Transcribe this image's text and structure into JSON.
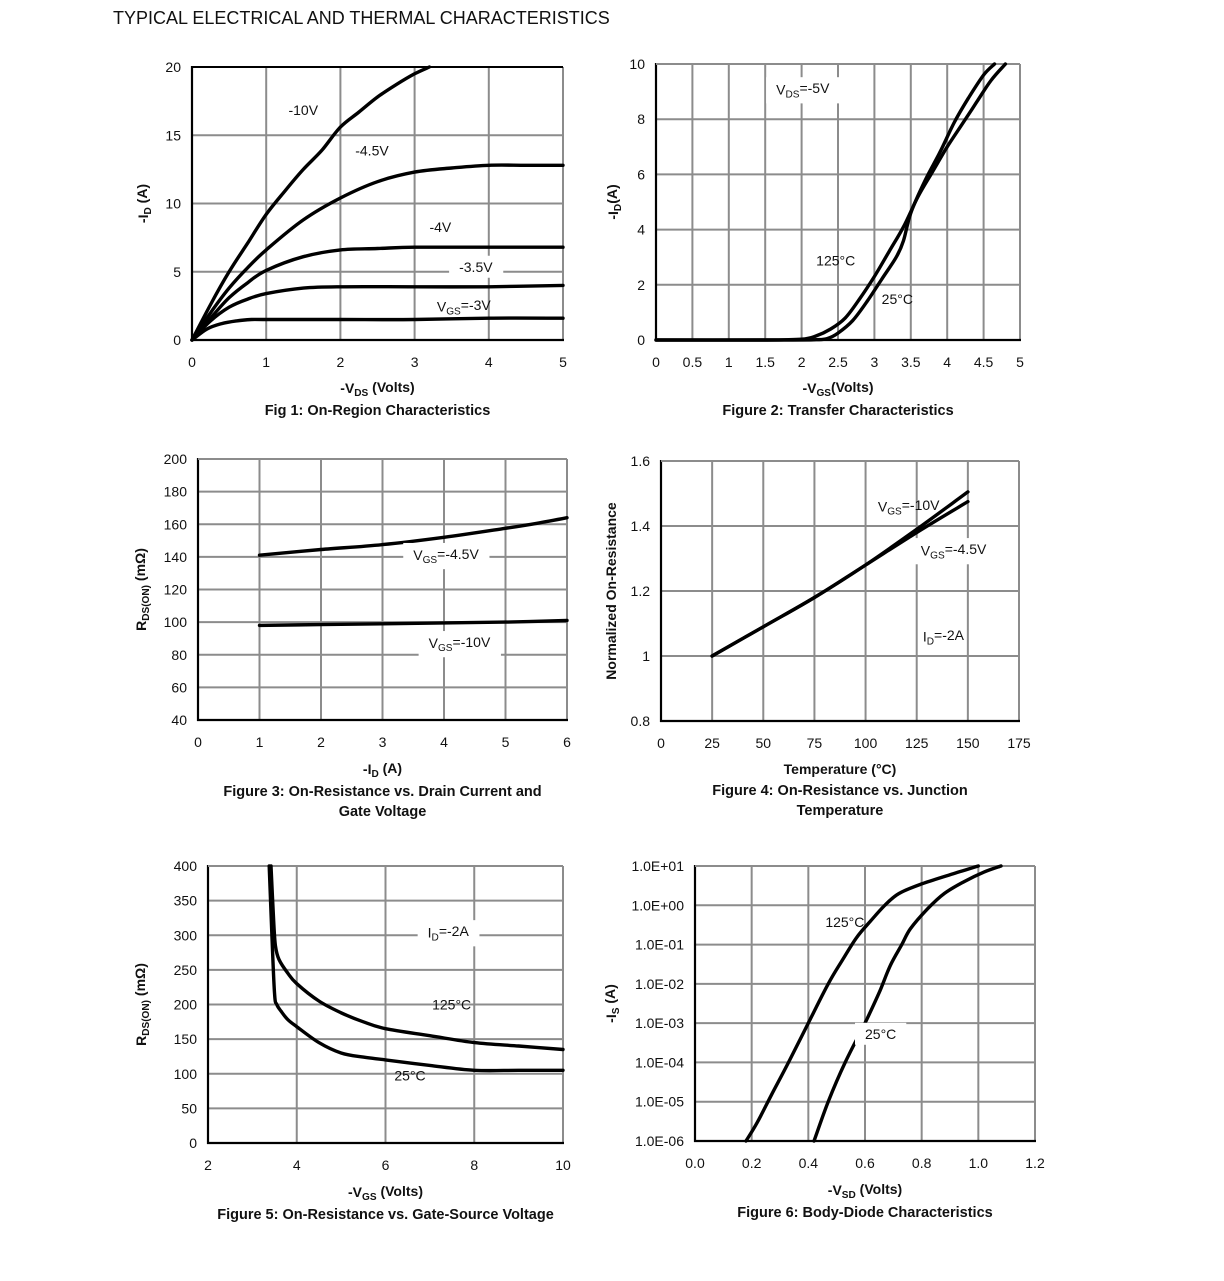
{
  "page": {
    "title": "TYPICAL ELECTRICAL AND THERMAL CHARACTERISTICS"
  },
  "chart_data": [
    {
      "id": "fig1",
      "type": "line",
      "title": "Fig 1: On-Region Characteristics",
      "title_lines": [
        "Fig 1: On-Region Characteristics"
      ],
      "xlabel": {
        "main": "-V",
        "sub": "DS",
        "rest": " (Volts)"
      },
      "ylabel": {
        "main": "-I",
        "sub": "D",
        "rest": " (A)"
      },
      "xlim": [
        0,
        5
      ],
      "ylim": [
        0,
        20
      ],
      "xticks": [
        0,
        1,
        2,
        3,
        4,
        5
      ],
      "xtick_labels": [
        "0",
        "1",
        "2",
        "3",
        "4",
        "5"
      ],
      "yticks": [
        0,
        5,
        10,
        15,
        20
      ],
      "ytick_labels": [
        "0",
        "5",
        "10",
        "15",
        "20"
      ],
      "yscale": "linear",
      "grid": true,
      "series": [
        {
          "name": "-10V",
          "x": [
            0,
            0.25,
            0.5,
            0.75,
            1.0,
            1.25,
            1.5,
            1.75,
            2.0,
            2.25,
            2.5,
            2.75,
            3.0,
            3.2
          ],
          "y": [
            0,
            2.6,
            5.0,
            7.1,
            9.2,
            10.9,
            12.5,
            13.9,
            15.6,
            16.7,
            17.8,
            18.7,
            19.5,
            20.0
          ]
        },
        {
          "name": "-4.5V",
          "x": [
            0,
            0.25,
            0.5,
            0.75,
            1.0,
            1.5,
            2.0,
            2.5,
            3.0,
            3.5,
            4.0,
            4.5,
            5.0
          ],
          "y": [
            0,
            2.0,
            3.8,
            5.3,
            6.6,
            8.8,
            10.4,
            11.6,
            12.3,
            12.6,
            12.8,
            12.8,
            12.8
          ]
        },
        {
          "name": "-4V",
          "x": [
            0,
            0.25,
            0.5,
            0.75,
            1.0,
            1.5,
            2.0,
            2.5,
            3.0,
            4.0,
            5.0
          ],
          "y": [
            0,
            1.6,
            3.1,
            4.2,
            5.1,
            6.1,
            6.6,
            6.7,
            6.8,
            6.8,
            6.8
          ]
        },
        {
          "name": "-3.5V",
          "x": [
            0,
            0.25,
            0.5,
            0.75,
            1.0,
            1.5,
            2.0,
            3.0,
            4.0,
            5.0
          ],
          "y": [
            0,
            1.4,
            2.4,
            3.0,
            3.4,
            3.8,
            3.9,
            3.9,
            3.9,
            4.0
          ]
        },
        {
          "name": "VGS=-3V",
          "x": [
            0,
            0.2,
            0.4,
            0.6,
            0.8,
            1.0,
            2.0,
            3.0,
            4.0,
            5.0
          ],
          "y": [
            0,
            0.8,
            1.2,
            1.4,
            1.5,
            1.5,
            1.5,
            1.5,
            1.6,
            1.6
          ]
        }
      ],
      "annotations": [
        {
          "text": "-10V",
          "x": 1.3,
          "y": 16.5,
          "bg": false
        },
        {
          "text": "-4.5V",
          "x": 2.2,
          "y": 13.5,
          "bg": false
        },
        {
          "text": "-4V",
          "x": 3.2,
          "y": 7.9,
          "bg": false
        },
        {
          "text": "-3.5V",
          "x": 3.6,
          "y": 5.0,
          "bg": true
        },
        {
          "main": "V",
          "sub": "GS",
          "rest": "=-3V",
          "x": 3.3,
          "y": 2.1,
          "bg": false
        }
      ]
    },
    {
      "id": "fig2",
      "type": "line",
      "title": "Figure 2: Transfer Characteristics",
      "title_lines": [
        "Figure 2: Transfer Characteristics"
      ],
      "xlabel": {
        "main": "-V",
        "sub": "GS",
        "rest": "(Volts)"
      },
      "ylabel": {
        "main": "-I",
        "sub": "D",
        "rest": "(A)"
      },
      "xlim": [
        0,
        5
      ],
      "ylim": [
        0,
        10
      ],
      "xticks": [
        0,
        0.5,
        1,
        1.5,
        2,
        2.5,
        3,
        3.5,
        4,
        4.5,
        5
      ],
      "xtick_labels": [
        "0",
        "0.5",
        "1",
        "1.5",
        "2",
        "2.5",
        "3",
        "3.5",
        "4",
        "4.5",
        "5"
      ],
      "yticks": [
        0,
        2,
        4,
        6,
        8,
        10
      ],
      "ytick_labels": [
        "0",
        "2",
        "4",
        "6",
        "8",
        "10"
      ],
      "yscale": "linear",
      "grid": true,
      "series": [
        {
          "name": "125°C",
          "x": [
            0,
            1.5,
            2.0,
            2.2,
            2.4,
            2.6,
            2.8,
            3.0,
            3.2,
            3.4,
            3.6,
            3.8,
            4.0,
            4.2,
            4.4,
            4.6,
            4.8
          ],
          "y": [
            0,
            0,
            0.03,
            0.15,
            0.4,
            0.8,
            1.5,
            2.3,
            3.2,
            4.1,
            5.2,
            6.1,
            7.0,
            7.8,
            8.6,
            9.4,
            10.0
          ]
        },
        {
          "name": "25°C",
          "x": [
            0,
            1.8,
            2.2,
            2.35,
            2.5,
            2.7,
            2.9,
            3.1,
            3.3,
            3.4,
            3.5,
            3.7,
            3.9,
            4.1,
            4.3,
            4.5,
            4.65
          ],
          "y": [
            0,
            0,
            0.01,
            0.05,
            0.25,
            0.7,
            1.4,
            2.2,
            3.0,
            3.6,
            4.6,
            5.8,
            6.8,
            7.9,
            8.8,
            9.6,
            10.0
          ]
        }
      ],
      "annotations": [
        {
          "main": "V",
          "sub": "DS",
          "rest": "=-5V",
          "x": 1.65,
          "y": 8.9,
          "bg": true
        },
        {
          "text": "125°C",
          "x": 2.2,
          "y": 2.7,
          "bg": false
        },
        {
          "text": "25°C",
          "x": 3.1,
          "y": 1.3,
          "bg": false
        }
      ]
    },
    {
      "id": "fig3",
      "type": "line",
      "title": "Figure 3: On-Resistance vs. Drain Current and Gate Voltage",
      "title_lines": [
        "Figure 3: On-Resistance vs. Drain Current and",
        "Gate Voltage"
      ],
      "xlabel": {
        "main": "-I",
        "sub": "D",
        "rest": " (A)"
      },
      "ylabel": {
        "main": "R",
        "sub": "DS(ON)",
        "rest": " (mΩ)"
      },
      "xlim": [
        0,
        6
      ],
      "ylim": [
        40,
        200
      ],
      "xticks": [
        0,
        1,
        2,
        3,
        4,
        5,
        6
      ],
      "xtick_labels": [
        "0",
        "1",
        "2",
        "3",
        "4",
        "5",
        "6"
      ],
      "yticks": [
        40,
        60,
        80,
        100,
        120,
        140,
        160,
        180,
        200
      ],
      "ytick_labels": [
        "40",
        "60",
        "80",
        "100",
        "120",
        "140",
        "160",
        "180",
        "200"
      ],
      "yscale": "linear",
      "grid": true,
      "series": [
        {
          "name": "VGS=-4.5V",
          "x": [
            1,
            2,
            3,
            4,
            5,
            5.5,
            6
          ],
          "y": [
            141,
            144.5,
            147.5,
            152,
            157.5,
            160.5,
            164
          ]
        },
        {
          "name": "VGS=-10V",
          "x": [
            1,
            2,
            3,
            4,
            5,
            6
          ],
          "y": [
            98,
            98.5,
            99,
            99.5,
            100,
            101
          ]
        }
      ],
      "annotations": [
        {
          "main": "V",
          "sub": "GS",
          "rest": "=-4.5V",
          "x": 3.5,
          "y": 138,
          "bg": true
        },
        {
          "main": "V",
          "sub": "GS",
          "rest": "=-10V",
          "x": 3.75,
          "y": 84,
          "bg": true
        }
      ]
    },
    {
      "id": "fig4",
      "type": "line",
      "title": "Figure 4: On-Resistance vs. Junction Temperature",
      "title_lines": [
        "Figure 4: On-Resistance vs. Junction",
        "Temperature"
      ],
      "xlabel": {
        "main": "Temperature (°C)",
        "sub": "",
        "rest": ""
      },
      "ylabel": {
        "main": "Normalized On-Resistance",
        "sub": "",
        "rest": ""
      },
      "xlim": [
        0,
        175
      ],
      "ylim": [
        0.8,
        1.6
      ],
      "xticks": [
        0,
        25,
        50,
        75,
        100,
        125,
        150,
        175
      ],
      "xtick_labels": [
        "0",
        "25",
        "50",
        "75",
        "100",
        "125",
        "150",
        "175"
      ],
      "yticks": [
        0.8,
        1.0,
        1.2,
        1.4,
        1.6
      ],
      "ytick_labels": [
        "0.8",
        "1",
        "1.2",
        "1.4",
        "1.6"
      ],
      "yscale": "linear",
      "grid": true,
      "series": [
        {
          "name": "VGS=-10V",
          "x": [
            25,
            50,
            75,
            100,
            125,
            150
          ],
          "y": [
            1.0,
            1.09,
            1.18,
            1.28,
            1.39,
            1.505
          ]
        },
        {
          "name": "VGS=-4.5V",
          "x": [
            25,
            50,
            75,
            100,
            125,
            150
          ],
          "y": [
            1.0,
            1.09,
            1.18,
            1.28,
            1.38,
            1.475
          ]
        }
      ],
      "annotations": [
        {
          "main": "V",
          "sub": "GS",
          "rest": "=-10V",
          "x": 106,
          "y": 1.445,
          "bg": false
        },
        {
          "main": "V",
          "sub": "GS",
          "rest": "=-4.5V",
          "x": 127,
          "y": 1.31,
          "bg": true
        },
        {
          "main": "I",
          "sub": "D",
          "rest": "=-2A",
          "x": 128,
          "y": 1.045,
          "bg": false
        }
      ]
    },
    {
      "id": "fig5",
      "type": "line",
      "title": "Figure 5: On-Resistance vs. Gate-Source Voltage",
      "title_lines": [
        "Figure 5: On-Resistance vs. Gate-Source Voltage"
      ],
      "xlabel": {
        "main": "-V",
        "sub": "GS",
        "rest": " (Volts)"
      },
      "ylabel": {
        "main": "R",
        "sub": "DS(ON)",
        "rest": " (mΩ)"
      },
      "xlim": [
        2,
        10
      ],
      "ylim": [
        0,
        400
      ],
      "xticks": [
        2,
        4,
        6,
        8,
        10
      ],
      "xtick_labels": [
        "2",
        "4",
        "6",
        "8",
        "10"
      ],
      "yticks": [
        0,
        50,
        100,
        150,
        200,
        250,
        300,
        350,
        400
      ],
      "ytick_labels": [
        "0",
        "50",
        "100",
        "150",
        "200",
        "250",
        "300",
        "350",
        "400"
      ],
      "yscale": "linear",
      "grid": true,
      "series": [
        {
          "name": "125°C",
          "x": [
            3.42,
            3.48,
            3.52,
            3.6,
            3.8,
            4.0,
            4.5,
            5.0,
            5.5,
            6.0,
            7.0,
            8.0,
            9.0,
            10.0
          ],
          "y": [
            400,
            320,
            285,
            265,
            245,
            230,
            205,
            188,
            175,
            165,
            155,
            145,
            140,
            135
          ]
        },
        {
          "name": "25°C",
          "x": [
            3.38,
            3.44,
            3.5,
            3.55,
            3.65,
            3.8,
            4.0,
            4.5,
            5.0,
            5.5,
            6.0,
            7.0,
            8.0,
            9.0,
            10.0
          ],
          "y": [
            400,
            300,
            215,
            200,
            190,
            178,
            168,
            145,
            130,
            124,
            120,
            112,
            105,
            105,
            105
          ]
        }
      ],
      "annotations": [
        {
          "main": "I",
          "sub": "D",
          "rest": "=-2A",
          "x": 6.95,
          "y": 297,
          "bg": true
        },
        {
          "text": "125°C",
          "x": 7.05,
          "y": 193,
          "bg": false
        },
        {
          "text": "25°C",
          "x": 6.2,
          "y": 90,
          "bg": false
        }
      ]
    },
    {
      "id": "fig6",
      "type": "line",
      "title": "Figure 6: Body-Diode Characteristics",
      "title_lines": [
        "Figure 6: Body-Diode Characteristics"
      ],
      "xlabel": {
        "main": "-V",
        "sub": "SD",
        "rest": " (Volts)"
      },
      "ylabel": {
        "main": "-I",
        "sub": "S",
        "rest": " (A)"
      },
      "xlim": [
        0,
        1.2
      ],
      "ylim": [
        1e-06,
        10
      ],
      "xticks": [
        0,
        0.2,
        0.4,
        0.6,
        0.8,
        1.0,
        1.2
      ],
      "xtick_labels": [
        "0.0",
        "0.2",
        "0.4",
        "0.6",
        "0.8",
        "1.0",
        "1.2"
      ],
      "yticks": [
        1e-06,
        1e-05,
        0.0001,
        0.001,
        0.01,
        0.1,
        1,
        10
      ],
      "ytick_labels": [
        "1.0E-06",
        "1.0E-05",
        "1.0E-04",
        "1.0E-03",
        "1.0E-02",
        "1.0E-01",
        "1.0E+00",
        "1.0E+01"
      ],
      "yscale": "log",
      "grid": true,
      "series": [
        {
          "name": "125°C",
          "x": [
            0.18,
            0.22,
            0.27,
            0.33,
            0.4,
            0.47,
            0.52,
            0.57,
            0.62,
            0.67,
            0.72,
            0.8,
            0.9,
            1.0
          ],
          "y": [
            1e-06,
            3e-06,
            1.5e-05,
            0.0001,
            0.001,
            0.01,
            0.04,
            0.15,
            0.4,
            1.0,
            2.0,
            3.5,
            6.0,
            10
          ]
        },
        {
          "name": "25°C",
          "x": [
            0.42,
            0.47,
            0.53,
            0.6,
            0.65,
            0.69,
            0.73,
            0.76,
            0.82,
            0.88,
            0.95,
            1.02,
            1.08
          ],
          "y": [
            1e-06,
            1e-05,
            0.0001,
            0.001,
            0.006,
            0.03,
            0.1,
            0.25,
            0.8,
            2.0,
            4.0,
            7.0,
            10
          ]
        }
      ],
      "annotations": [
        {
          "text": "125°C",
          "x": 0.46,
          "y": 0.28,
          "bg": false
        },
        {
          "text": "25°C",
          "x": 0.6,
          "y": 0.0004,
          "bg": true
        }
      ]
    }
  ]
}
